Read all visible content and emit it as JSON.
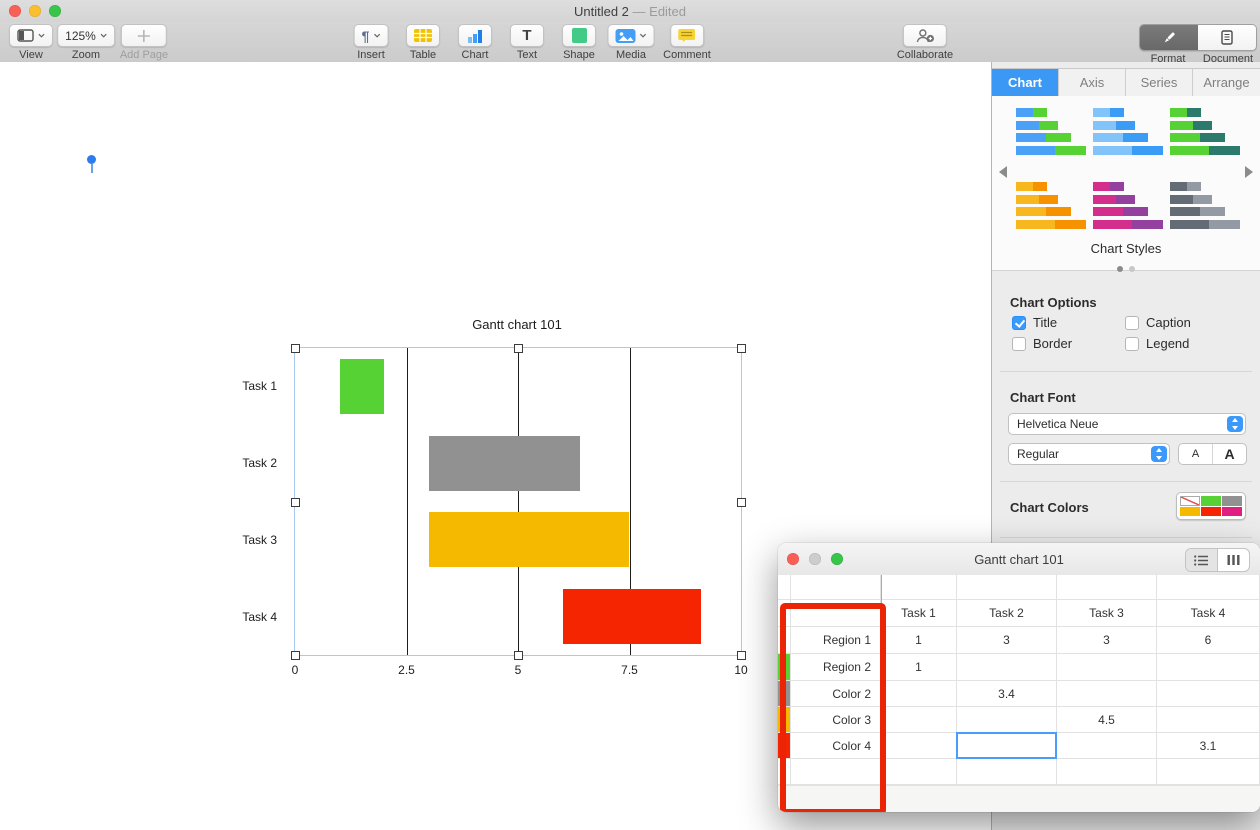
{
  "titlebar": {
    "title": "Untitled 2",
    "edited": "— Edited"
  },
  "toolbar": {
    "view": "View",
    "zoom": "Zoom",
    "zoom_value": "125%",
    "add_page": "Add Page",
    "insert": "Insert",
    "table": "Table",
    "chart": "Chart",
    "text": "Text",
    "shape": "Shape",
    "media": "Media",
    "comment": "Comment",
    "collaborate": "Collaborate",
    "format": "Format",
    "document": "Document"
  },
  "icons": {
    "insert_glyph": "¶",
    "text_glyph": "T"
  },
  "sidebar": {
    "tabs": [
      {
        "label": "Chart",
        "selected": true
      },
      {
        "label": "Axis",
        "selected": false
      },
      {
        "label": "Series",
        "selected": false
      },
      {
        "label": "Arrange",
        "selected": false
      }
    ],
    "chart_styles_label": "Chart Styles",
    "style_pairs": [
      [
        "#4ba1f6",
        "#57d234"
      ],
      [
        "#82c4f9",
        "#3b9cf6"
      ],
      [
        "#57d234",
        "#2b7a6b"
      ],
      [
        "#f8b71f",
        "#f69200"
      ],
      [
        "#d42e8d",
        "#93409f"
      ],
      [
        "#636b75",
        "#939aa3"
      ]
    ],
    "options": {
      "heading": "Chart Options",
      "checkboxes": [
        {
          "label": "Title",
          "checked": true
        },
        {
          "label": "Caption",
          "checked": false
        },
        {
          "label": "Border",
          "checked": false
        },
        {
          "label": "Legend",
          "checked": false
        }
      ]
    },
    "font": {
      "heading": "Chart Font",
      "family": "Helvetica Neue",
      "style": "Regular",
      "decrease_label": "A",
      "increase_label": "A"
    },
    "colors": {
      "heading": "Chart Colors",
      "swatches": [
        "none",
        "#57d234",
        "#919191",
        "#f5ba00",
        "#f42500",
        "#e01f83"
      ]
    }
  },
  "chart_data": {
    "type": "bar",
    "subtype": "stacked-horizontal-gantt",
    "title": "Gantt chart 101",
    "orientation": "horizontal",
    "categories": [
      "Task 1",
      "Task 2",
      "Task 3",
      "Task 4"
    ],
    "series": [
      {
        "name": "Region 1",
        "color": null,
        "values": [
          1,
          3,
          3,
          6
        ]
      },
      {
        "name": "Region 2",
        "color": "#57d234",
        "values": [
          1,
          null,
          null,
          null
        ]
      },
      {
        "name": "Color 2",
        "color": "#919191",
        "values": [
          null,
          3.4,
          null,
          null
        ]
      },
      {
        "name": "Color 3",
        "color": "#f5ba00",
        "values": [
          null,
          null,
          4.5,
          null
        ]
      },
      {
        "name": "Color 4",
        "color": "#f42500",
        "values": [
          null,
          null,
          null,
          3.1
        ]
      }
    ],
    "bars": [
      {
        "task": "Task 1",
        "start": 1,
        "end": 2
      },
      {
        "task": "Task 2",
        "start": 3,
        "end": 6.4
      },
      {
        "task": "Task 3",
        "start": 3,
        "end": 7.5
      },
      {
        "task": "Task 4",
        "start": 6,
        "end": 9.1
      }
    ],
    "xlim": [
      0,
      10
    ],
    "xticks": [
      0,
      2.5,
      5,
      7.5,
      10
    ],
    "legend": false,
    "gridlines": true
  },
  "data_editor": {
    "window_title": "Gantt chart 101",
    "columns": [
      "Task 1",
      "Task 2",
      "Task 3",
      "Task 4"
    ],
    "rows": [
      {
        "label": "Region 1",
        "swatch": null,
        "values": [
          "1",
          "3",
          "3",
          "6"
        ]
      },
      {
        "label": "Region 2",
        "swatch": "#57d234",
        "values": [
          "1",
          "",
          "",
          ""
        ]
      },
      {
        "label": "Color 2",
        "swatch": "#919191",
        "values": [
          "",
          "3.4",
          "",
          ""
        ]
      },
      {
        "label": "Color 3",
        "swatch": "#f5ba00",
        "values": [
          "",
          "",
          "4.5",
          ""
        ]
      },
      {
        "label": "Color 4",
        "swatch": "#f42500",
        "values": [
          "",
          "",
          "",
          "3.1"
        ]
      }
    ],
    "selected_cell": {
      "row_label": "Color 4",
      "column": "Task 2"
    }
  }
}
